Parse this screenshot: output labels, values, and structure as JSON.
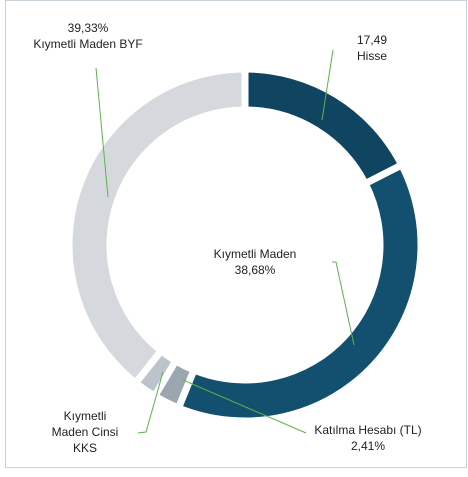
{
  "chart_data": {
    "type": "pie",
    "categories": [
      "Hisse",
      "Kıymetli Maden",
      "Katılma Hesabı (TL)",
      "Kıymetli Maden Cinsi KKS",
      "Kıymetli Maden BYF"
    ],
    "values": [
      17.49,
      38.68,
      2.41,
      2.09,
      39.33
    ],
    "value_labels": [
      "17,49",
      "38,68%",
      "2,41%",
      null,
      "39,33%"
    ],
    "colors": [
      "#0f4560",
      "#134f6e",
      "#9ba6b1",
      "#bcc3ca",
      "#d5d9dd"
    ]
  }
}
